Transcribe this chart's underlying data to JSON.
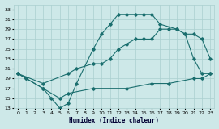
{
  "xlabel": "Humidex (Indice chaleur)",
  "background_color": "#cde8e8",
  "line_color": "#1a6e6e",
  "grid_color": "#aacfcf",
  "xlim": [
    -0.5,
    23.5
  ],
  "ylim": [
    13,
    34
  ],
  "xticks": [
    0,
    1,
    2,
    3,
    4,
    5,
    6,
    7,
    8,
    9,
    10,
    11,
    12,
    13,
    14,
    15,
    16,
    17,
    18,
    19,
    20,
    21,
    22,
    23
  ],
  "yticks": [
    13,
    15,
    17,
    19,
    21,
    23,
    25,
    27,
    29,
    31,
    33
  ],
  "line1_x": [
    0,
    1,
    3,
    4,
    5,
    6,
    7,
    9,
    10,
    11,
    12,
    13,
    14,
    15,
    16,
    17,
    19,
    20,
    21,
    22,
    23
  ],
  "line1_y": [
    20,
    19,
    17,
    15,
    13,
    14,
    18,
    25,
    28,
    30,
    32,
    32,
    32,
    32,
    32,
    30,
    29,
    28,
    23,
    20,
    20
  ],
  "line2_x": [
    0,
    3,
    6,
    7,
    9,
    10,
    11,
    12,
    13,
    14,
    15,
    16,
    17,
    18,
    19,
    20,
    21,
    22,
    23
  ],
  "line2_y": [
    20,
    18,
    20,
    21,
    22,
    22,
    23,
    25,
    26,
    27,
    27,
    27,
    29,
    29,
    29,
    28,
    28,
    27,
    23
  ],
  "line3_x": [
    0,
    1,
    3,
    5,
    6,
    9,
    13,
    16,
    18,
    21,
    22,
    23
  ],
  "line3_y": [
    20,
    19,
    17,
    15,
    16,
    17,
    17,
    18,
    18,
    19,
    19,
    20
  ]
}
